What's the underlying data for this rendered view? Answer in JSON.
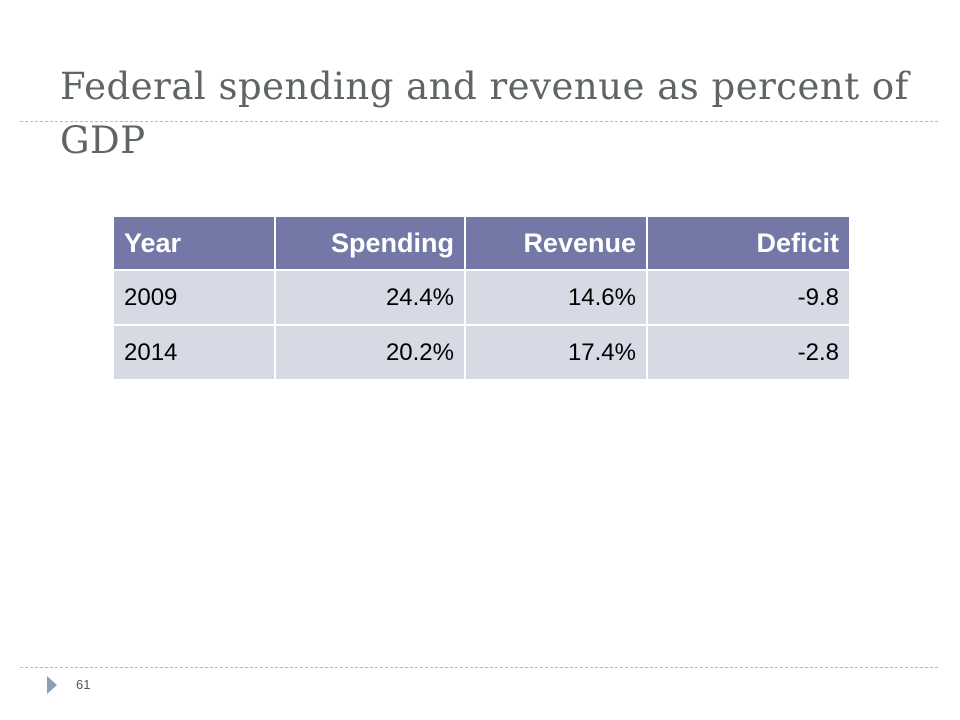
{
  "slide": {
    "title": "Federal spending and revenue as percent of GDP",
    "page_number": "61"
  },
  "table": {
    "headers": [
      "Year",
      "Spending",
      "Revenue",
      "Deficit"
    ],
    "rows": [
      [
        "2009",
        "24.4%",
        "14.6%",
        "-9.8"
      ],
      [
        "2014",
        "20.2%",
        "17.4%",
        "-2.8"
      ]
    ]
  },
  "colors": {
    "header_bg": "#7378a6",
    "row_bg": "#d7d9e4",
    "title_text": "#5f6466",
    "rule": "#a9bccb",
    "bullet": "#8a9fb3"
  },
  "icons": {
    "footer_bullet": "triangle-right-icon"
  }
}
